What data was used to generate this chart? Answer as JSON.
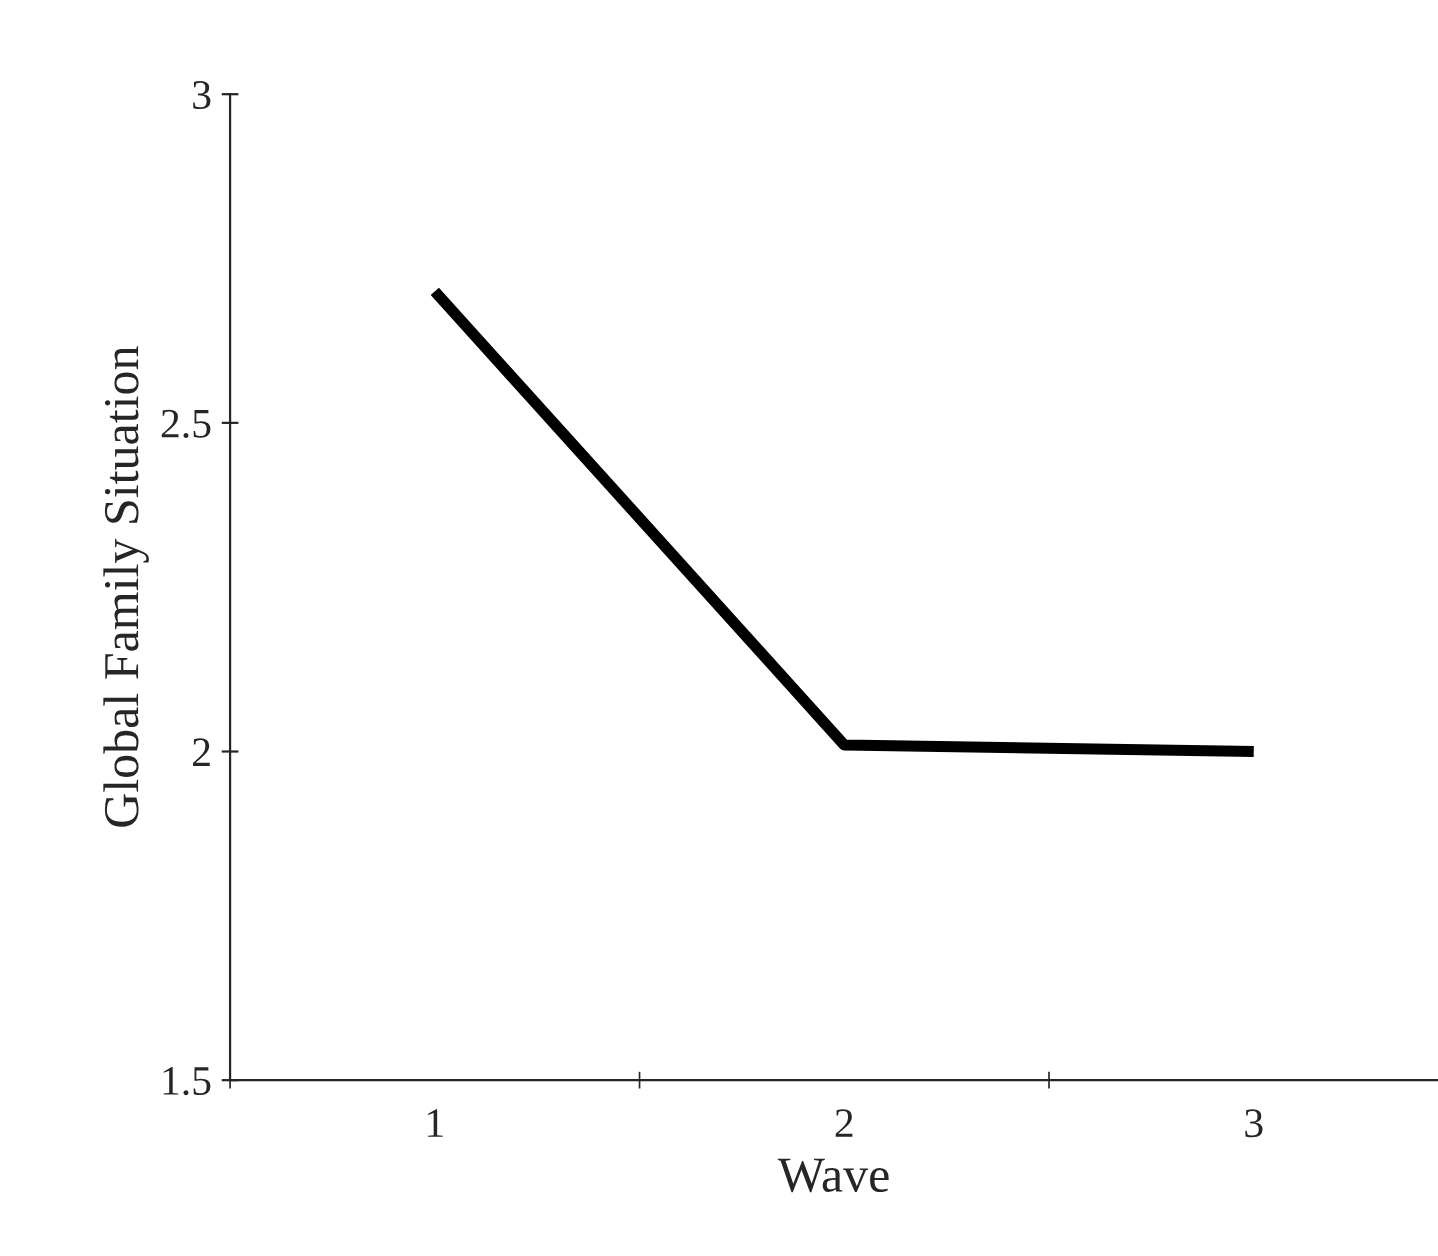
{
  "chart_data": {
    "type": "line",
    "xlabel": "Wave",
    "ylabel": "Global Family Situation",
    "categories": [
      "1",
      "2",
      "3"
    ],
    "series": [
      {
        "color": "#000000",
        "values": [
          2.7,
          2.01,
          2.0
        ]
      }
    ],
    "ylim": [
      1.5,
      3
    ],
    "yticks": [
      1.5,
      2,
      2.5,
      3
    ],
    "grid": false,
    "marker": "none",
    "line_style": "solid"
  }
}
